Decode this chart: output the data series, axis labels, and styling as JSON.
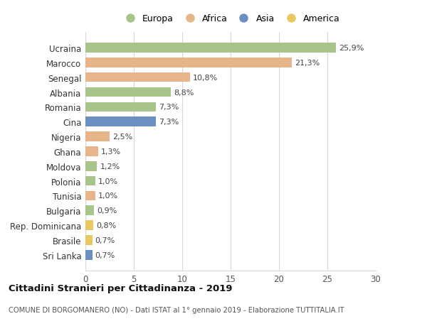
{
  "categories": [
    "Ucraina",
    "Marocco",
    "Senegal",
    "Albania",
    "Romania",
    "Cina",
    "Nigeria",
    "Ghana",
    "Moldova",
    "Polonia",
    "Tunisia",
    "Bulgaria",
    "Rep. Dominicana",
    "Brasile",
    "Sri Lanka"
  ],
  "values": [
    25.9,
    21.3,
    10.8,
    8.8,
    7.3,
    7.3,
    2.5,
    1.3,
    1.2,
    1.0,
    1.0,
    0.9,
    0.8,
    0.7,
    0.7
  ],
  "labels": [
    "25,9%",
    "21,3%",
    "10,8%",
    "8,8%",
    "7,3%",
    "7,3%",
    "2,5%",
    "1,3%",
    "1,2%",
    "1,0%",
    "1,0%",
    "0,9%",
    "0,8%",
    "0,7%",
    "0,7%"
  ],
  "colors": [
    "#a8c48a",
    "#e8b48a",
    "#e8b48a",
    "#a8c48a",
    "#a8c48a",
    "#6b8fc0",
    "#e8b48a",
    "#e8b48a",
    "#a8c48a",
    "#a8c48a",
    "#e8b48a",
    "#a8c48a",
    "#e8c860",
    "#e8c860",
    "#6b8fc0"
  ],
  "legend_labels": [
    "Europa",
    "Africa",
    "Asia",
    "America"
  ],
  "legend_colors": [
    "#a8c48a",
    "#e8b48a",
    "#6b8fc0",
    "#e8c860"
  ],
  "xlim": [
    0,
    30
  ],
  "xticks": [
    0,
    5,
    10,
    15,
    20,
    25,
    30
  ],
  "title": "Cittadini Stranieri per Cittadinanza - 2019",
  "subtitle": "COMUNE DI BORGOMANERO (NO) - Dati ISTAT al 1° gennaio 2019 - Elaborazione TUTTITALIA.IT",
  "bg_color": "#ffffff",
  "grid_color": "#d8d8d8",
  "bar_height": 0.65,
  "figsize": [
    6.0,
    4.6
  ],
  "dpi": 100
}
